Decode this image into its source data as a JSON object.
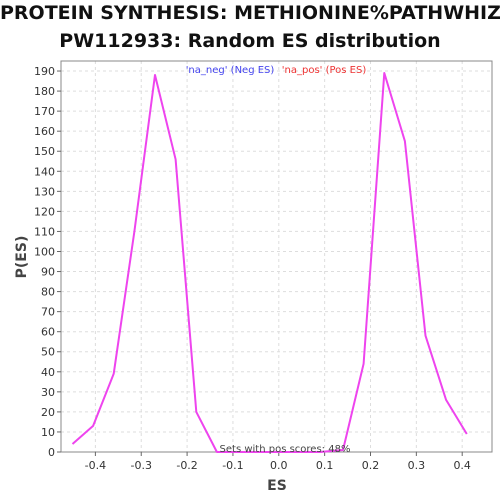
{
  "chart_data": {
    "type": "line",
    "title": "PROTEIN SYNTHESIS: METHIONINE%PATHWHIZ%",
    "subtitle": "PW112933: Random ES distribution",
    "xlabel": "ES",
    "ylabel": "P(ES)",
    "xlim": [
      -0.475,
      0.465
    ],
    "ylim": [
      0,
      195
    ],
    "xticks": [
      "-0.4",
      "-0.3",
      "-0.2",
      "-0.1",
      "0.0",
      "0.1",
      "0.2",
      "0.3",
      "0.4"
    ],
    "yticks": [
      "0",
      "10",
      "20",
      "30",
      "40",
      "50",
      "60",
      "70",
      "80",
      "90",
      "100",
      "110",
      "120",
      "130",
      "140",
      "150",
      "160",
      "170",
      "180",
      "190"
    ],
    "grid": true,
    "legend": {
      "placement": "top",
      "neg_label": "'na_neg' (Neg ES)",
      "pos_label": "'na_pos' (Pos ES)",
      "neg_color": "#4444ee",
      "pos_color": "#ee3333"
    },
    "annotation": "Sets with pos scores: 48%",
    "line_color": "#ee44ee",
    "series": [
      {
        "x": [
          -0.45,
          -0.405,
          -0.36,
          -0.315,
          -0.27,
          -0.225,
          -0.18,
          -0.135,
          -0.09,
          -0.045,
          0.0,
          0.045,
          0.09,
          0.14,
          0.185,
          0.23,
          0.275,
          0.32,
          0.365,
          0.41
        ],
        "y": [
          4,
          13,
          39,
          110,
          188,
          146,
          20,
          0,
          0,
          0,
          0,
          0,
          0,
          1,
          44,
          189,
          155,
          58,
          26,
          9
        ]
      }
    ]
  }
}
